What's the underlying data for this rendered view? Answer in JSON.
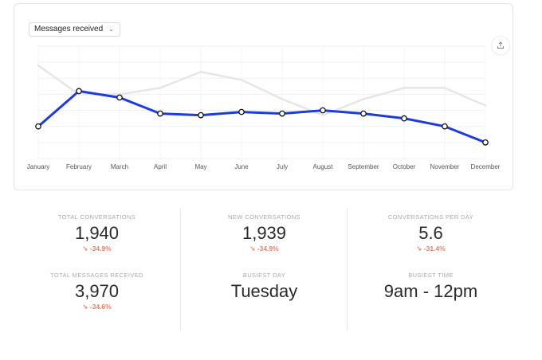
{
  "dropdown": {
    "label": "Messages received",
    "icon": "chevron-down-icon"
  },
  "export_icon": "upload-icon",
  "chart_data": {
    "type": "line",
    "categories": [
      "January",
      "February",
      "March",
      "April",
      "May",
      "June",
      "July",
      "August",
      "September",
      "October",
      "November",
      "December"
    ],
    "series": [
      {
        "values": [
          100,
          78,
          82,
          92,
          93,
          91,
          92,
          90,
          92,
          95,
          100,
          110
        ],
        "color": "#1e3be0"
      },
      {
        "values": [
          62,
          80,
          80,
          76,
          66,
          71,
          83,
          93,
          83,
          76,
          76,
          87
        ],
        "color": "#e6e6e6"
      }
    ],
    "ylim": [
      50,
      120
    ],
    "grid": true,
    "legend": "none"
  },
  "stats": {
    "total_conversations": {
      "label": "TOTAL CONVERSATIONS",
      "value": "1,940",
      "change": "↘ -34.9%"
    },
    "new_conversations": {
      "label": "NEW CONVERSATIONS",
      "value": "1,939",
      "change": "↘ -34.9%"
    },
    "conversations_per_day": {
      "label": "CONVERSATIONS PER DAY",
      "value": "5.6",
      "change": "↘ -31.4%"
    },
    "total_messages_received": {
      "label": "TOTAL MESSAGES RECEIVED",
      "value": "3,970",
      "change": "↘ -34.6%"
    },
    "busiest_day": {
      "label": "BUSIEST DAY",
      "value": "Tuesday"
    },
    "busiest_time": {
      "label": "BUSIEST TIME",
      "value": "9am - 12pm"
    }
  },
  "colors": {
    "accent": "#1e3be0",
    "negative": "#e8806a"
  }
}
